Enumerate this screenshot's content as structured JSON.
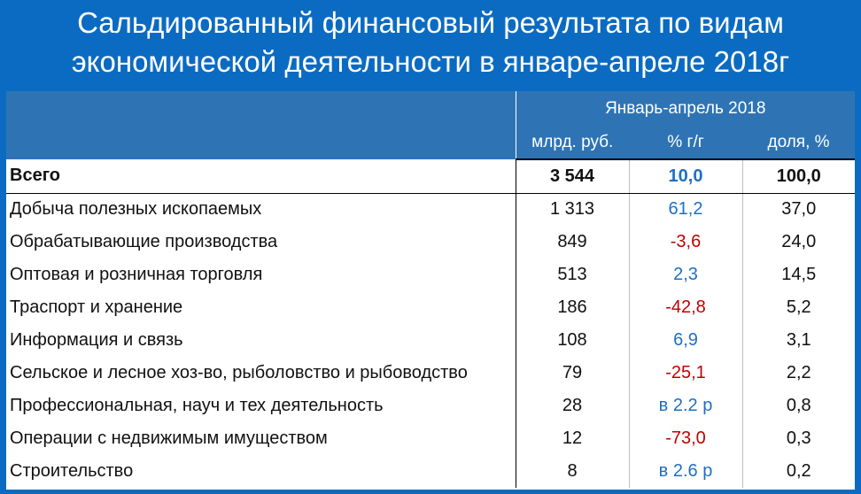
{
  "title_lines": [
    "Сальдированный финансовый результата по видам",
    "экономической деятельности в январе-апреле 2018г"
  ],
  "colors": {
    "background": "#0b6bc2",
    "header": "#2e74b5",
    "positive": "#1f6fc4",
    "negative": "#c00000"
  },
  "chart_data": {
    "type": "table",
    "title": "Сальдированный финансовый результата по видам экономической деятельности в январе-апреле 2018г",
    "period": "Январь-апрель 2018",
    "columns": [
      "млрд. руб.",
      "% г/г",
      "доля, %"
    ],
    "rows": [
      {
        "name": "Всего",
        "value": "3 544",
        "yoy": "10,0",
        "share": "100,0",
        "yoy_sign": "pos",
        "bold": true
      },
      {
        "name": "Добыча полезных ископаемых",
        "value": "1 313",
        "yoy": "61,2",
        "share": "37,0",
        "yoy_sign": "pos"
      },
      {
        "name": "Обрабатывающие производства",
        "value": "849",
        "yoy": "-3,6",
        "share": "24,0",
        "yoy_sign": "neg"
      },
      {
        "name": "Оптовая и розничная торговля",
        "value": "513",
        "yoy": "2,3",
        "share": "14,5",
        "yoy_sign": "pos"
      },
      {
        "name": "Траспорт и хранение",
        "value": "186",
        "yoy": "-42,8",
        "share": "5,2",
        "yoy_sign": "neg"
      },
      {
        "name": "Информация и связь",
        "value": "108",
        "yoy": "6,9",
        "share": "3,1",
        "yoy_sign": "pos"
      },
      {
        "name": "Сельское и лесное хоз-во, рыболовство и рыбоводство",
        "value": "79",
        "yoy": "-25,1",
        "share": "2,2",
        "yoy_sign": "neg"
      },
      {
        "name": "Профессиональная, науч и тех деятельность",
        "value": "28",
        "yoy": "в 2.2 р",
        "share": "0,8",
        "yoy_sign": "pos"
      },
      {
        "name": "Операции с недвижимым имуществом",
        "value": "12",
        "yoy": "-73,0",
        "share": "0,3",
        "yoy_sign": "neg"
      },
      {
        "name": "Строительство",
        "value": "8",
        "yoy": "в 2.6 р",
        "share": "0,2",
        "yoy_sign": "pos"
      }
    ]
  }
}
